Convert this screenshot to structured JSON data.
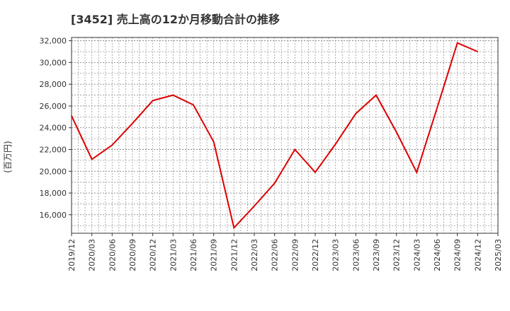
{
  "chart_data": {
    "type": "line",
    "title": "[3452]  売上高の12か月移動合計の推移",
    "xlabel": "",
    "ylabel": "(百万円)",
    "ylim": [
      14300,
      32300
    ],
    "yticks": [
      16000,
      18000,
      20000,
      22000,
      24000,
      26000,
      28000,
      30000,
      32000
    ],
    "ytick_labels": [
      "16,000",
      "18,000",
      "20,000",
      "22,000",
      "24,000",
      "26,000",
      "28,000",
      "30,000",
      "32,000"
    ],
    "xtick_labels": [
      "2019/12",
      "2020/03",
      "2020/06",
      "2020/09",
      "2020/12",
      "2021/03",
      "2021/06",
      "2021/09",
      "2021/12",
      "2022/03",
      "2022/06",
      "2022/09",
      "2022/12",
      "2023/03",
      "2023/06",
      "2023/09",
      "2023/12",
      "2024/03",
      "2024/06",
      "2024/09",
      "2024/12",
      "2025/03"
    ],
    "grid": true,
    "series": [
      {
        "name": "売上高(12か月移動合計)",
        "color": "#dd0000",
        "values": [
          25100,
          21100,
          22400,
          24400,
          26500,
          27000,
          26100,
          22700,
          14800,
          16800,
          18900,
          22000,
          19900,
          22500,
          25300,
          27000,
          23600,
          19900,
          25800,
          31800,
          31000
        ]
      }
    ]
  }
}
